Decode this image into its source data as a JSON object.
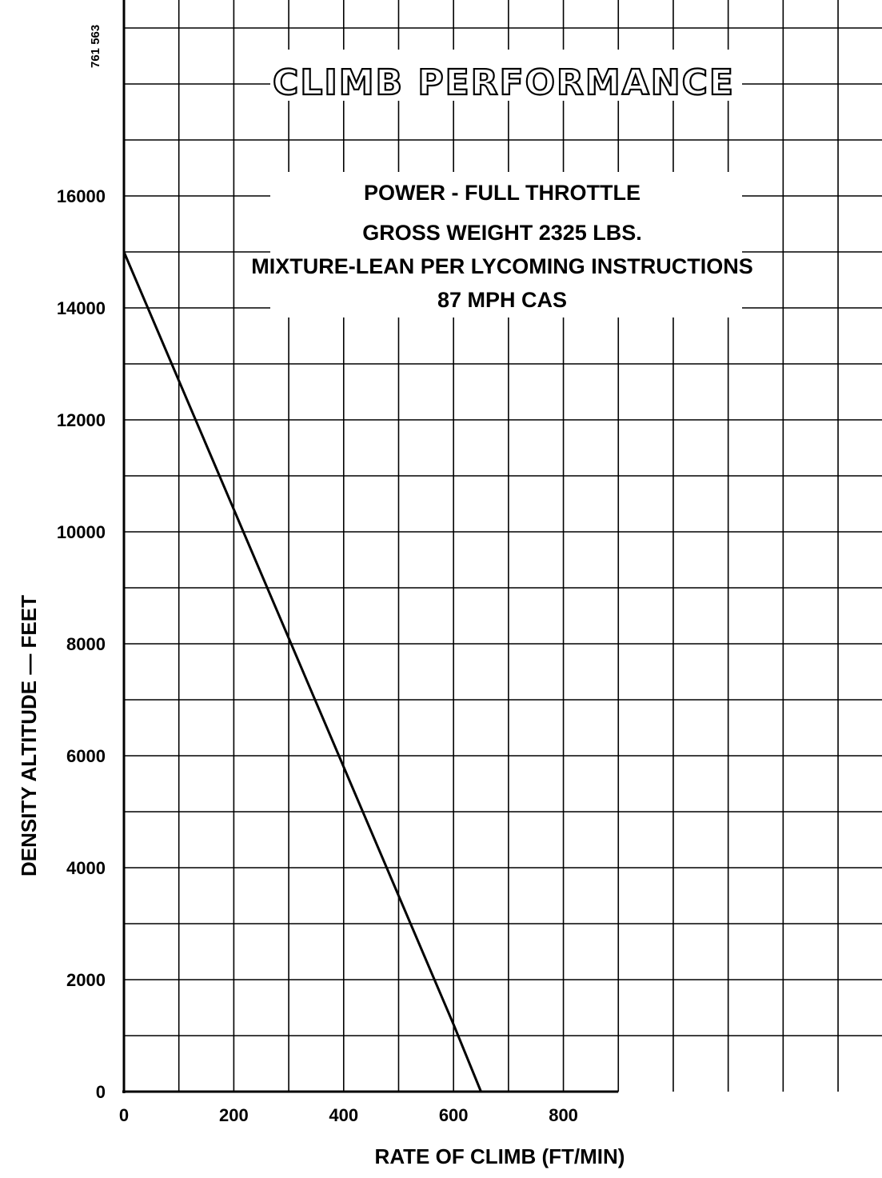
{
  "chart_data": {
    "type": "line",
    "title": "CLIMB PERFORMANCE",
    "notes": [
      "POWER - FULL THROTTLE",
      "GROSS WEIGHT 2325 LBS.",
      "MIXTURE-LEAN PER LYCOMING INSTRUCTIONS",
      "87 MPH CAS"
    ],
    "figure_code": "761 563",
    "xlabel": "RATE OF CLIMB (FT/MIN)",
    "ylabel": "DENSITY ALTITUDE — FEET",
    "xlim": [
      0,
      1380
    ],
    "ylim": [
      0,
      19500
    ],
    "x_ticks": [
      0,
      200,
      400,
      600,
      800
    ],
    "y_ticks": [
      0,
      2000,
      4000,
      6000,
      8000,
      10000,
      12000,
      14000,
      16000
    ],
    "x_tick_labels": [
      "0",
      "200",
      "400",
      "600",
      "800"
    ],
    "y_tick_labels": [
      "0",
      "2000",
      "4000",
      "6000",
      "8000",
      "10000",
      "12000",
      "14000",
      "16000"
    ],
    "grid": true,
    "series": [
      {
        "x": [
          0,
          100,
          200,
          300,
          400,
          500,
          600,
          650
        ],
        "y": [
          15000,
          12700,
          10400,
          8100,
          5800,
          3500,
          1200,
          0
        ]
      }
    ]
  }
}
